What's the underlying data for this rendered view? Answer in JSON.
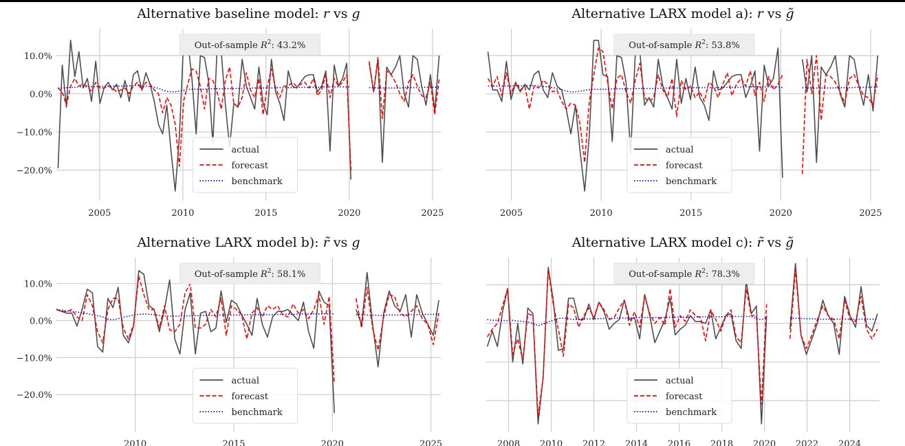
{
  "colors": {
    "actual": "#4d4d4d",
    "forecast": "#ff0000",
    "benchmark": "#0000cc",
    "grid": "#cccccc",
    "annotation_bg": "#eeeeee"
  },
  "legend": {
    "actual": "actual",
    "forecast": "forecast",
    "benchmark": "benchmark"
  },
  "chart_data": [
    {
      "type": "line",
      "title": "Alternative baseline model: r vs g",
      "title_parts": {
        "prefix": "Alternative baseline model: ",
        "left_sym": "r",
        "vs": " vs ",
        "right_sym": "g",
        "left_tilde": false,
        "right_tilde": false
      },
      "annotation": {
        "prefix": "Out-of-sample ",
        "sym": "R",
        "sup": "2",
        "value": ": 43.2%"
      },
      "xlim": [
        2002.4,
        2025.5
      ],
      "ylim": [
        -28,
        17
      ],
      "yticks": [
        10,
        0,
        -10,
        -20
      ],
      "ytick_labels": [
        "10.0%",
        "0.0%",
        "−10.0%",
        "−20.0%"
      ],
      "xticks": [
        2005,
        2010,
        2015,
        2020,
        2025
      ],
      "xtick_labels": [
        "2005",
        "2010",
        "2015",
        "2020",
        "2025"
      ],
      "legend_position": "lower-center",
      "x_start": 2002.5,
      "gap": [
        2020.1,
        2021.2
      ],
      "actual": [
        -19.5,
        7.5,
        -3.5,
        14,
        4.5,
        11,
        1.5,
        4,
        -2,
        8.5,
        -2.5,
        1.5,
        3,
        1,
        2.5,
        -1,
        3.5,
        -2,
        5,
        6,
        1,
        5.5,
        2.5,
        -2,
        -8,
        -10.5,
        -3,
        -15,
        -25.5,
        -11,
        14,
        14,
        4,
        -10.5,
        10,
        9.5,
        3,
        -13,
        11.5,
        11,
        -3,
        -14,
        -2.5,
        -3.5,
        9,
        2,
        -1,
        -4,
        7,
        -2.5,
        -5.5,
        9,
        0.5,
        -2.5,
        -7,
        6,
        2,
        1.5,
        3,
        4.5,
        5,
        5,
        0.5,
        2,
        6,
        -15,
        7.5,
        2,
        4,
        8,
        -22.5,
        8,
        0.5,
        9,
        -18,
        7,
        5,
        7,
        10,
        0,
        -3.5,
        10,
        9,
        2,
        -3,
        5,
        -4.5,
        10
      ],
      "forecast": [
        1.5,
        0.5,
        -3,
        2,
        4,
        2,
        2.5,
        2,
        0.5,
        3,
        1.5,
        1.5,
        2,
        1.5,
        0.5,
        1,
        1.5,
        0,
        2,
        3,
        1,
        3,
        2.5,
        1,
        0,
        -5,
        -1,
        -3,
        -8,
        -19,
        -2,
        2.5,
        6.5,
        6,
        2,
        -4,
        4,
        3.5,
        0.5,
        -4,
        3.5,
        7,
        -2.5,
        -3.5,
        -1,
        5.5,
        1,
        -1,
        4,
        -5.5,
        2,
        6.5,
        1.5,
        -1,
        2,
        2,
        3,
        2,
        2.5,
        3,
        1.5,
        4,
        -0.5,
        1,
        5,
        -1,
        4,
        2,
        3,
        5,
        -20,
        8.5,
        0.5,
        9.5,
        -6.5,
        6,
        5,
        3,
        0,
        -2,
        3,
        5,
        2,
        -0.5,
        -1,
        3,
        -5.5,
        4
      ],
      "benchmark": [
        1.5,
        1.5,
        1.6,
        1.6,
        1.7,
        1.8,
        1.8,
        1.8,
        1.9,
        1.9,
        1.9,
        2,
        2,
        2,
        2,
        2,
        2,
        2.1,
        2.1,
        2.2,
        2.1,
        2,
        1.9,
        1.7,
        1.4,
        1,
        0.6,
        0.5,
        0.5,
        0.7,
        0.9,
        1.1,
        1.2,
        1.2,
        1.2,
        1.2,
        1.3,
        1.3,
        1.3,
        1.3,
        1.3,
        1.4,
        1.4,
        1.4,
        1.4,
        1.4,
        1.5,
        1.5,
        1.5,
        1.5,
        1.5,
        1.5,
        1.6,
        1.6,
        1.6,
        1.6,
        1.6,
        1.6,
        1.7,
        1.7,
        1.7,
        1.7,
        1.7,
        1.8,
        1.8,
        1.8,
        1.8,
        1.8,
        1.8,
        1.8,
        1.8,
        1.6,
        1.6,
        1.5,
        1.5,
        1.5,
        1.5,
        1.5,
        1.5,
        1.6,
        1.6,
        1.6,
        1.6,
        1.7,
        1.7,
        1.7,
        1.7,
        1.8
      ]
    },
    {
      "type": "line",
      "title": "Alternative LARX model a): r vs g̃",
      "title_parts": {
        "prefix": "Alternative LARX model a): ",
        "left_sym": "r",
        "vs": " vs ",
        "right_sym": "g",
        "left_tilde": false,
        "right_tilde": true
      },
      "annotation": {
        "prefix": "Out-of-sample ",
        "sym": "R",
        "sup": "2",
        "value": ": 53.8%"
      },
      "xlim": [
        2003.6,
        2025.5
      ],
      "ylim": [
        -28,
        17
      ],
      "yticks": [
        10,
        0,
        -10,
        -20
      ],
      "ytick_labels": [],
      "xticks": [
        2005,
        2010,
        2015,
        2020,
        2025
      ],
      "xtick_labels": [
        "2005",
        "2010",
        "2015",
        "2020",
        "2025"
      ],
      "legend_position": "lower-center",
      "x_start": 2003.7,
      "gap": [
        2020.1,
        2021.2
      ],
      "actual": [
        11,
        1,
        1,
        -2,
        8.5,
        -1.5,
        3,
        0.5,
        2.5,
        1,
        5,
        6,
        1,
        -1,
        5.5,
        2,
        1,
        -4,
        -10.5,
        -3,
        -15,
        -25.5,
        -11,
        14,
        14,
        5,
        4.5,
        -12.5,
        10,
        9.5,
        3,
        -15.5,
        10.5,
        11,
        -3,
        -1,
        -3.5,
        9,
        2,
        -1,
        -4,
        9,
        -2.5,
        4,
        -1.5,
        7,
        -1,
        -3,
        -7,
        6,
        1,
        1.5,
        3,
        4.5,
        5,
        5,
        -1,
        2,
        6,
        -15,
        7.5,
        2,
        4,
        12,
        -22,
        9,
        0.5,
        10,
        -18,
        7,
        5,
        7,
        10,
        0,
        -3.5,
        10,
        9,
        2,
        -3,
        5,
        -4.5,
        10
      ],
      "forecast": [
        4,
        2,
        4.5,
        -0.5,
        5.5,
        0,
        3,
        1,
        2,
        -4,
        2,
        1.5,
        3.5,
        2.5,
        0.5,
        1,
        -2,
        -4,
        -2.5,
        -3,
        -8,
        -18,
        -2,
        5,
        12,
        11,
        3,
        -4,
        4,
        5,
        0.5,
        -2.5,
        3.5,
        8,
        -1,
        -2,
        -1,
        5,
        1,
        -1,
        4,
        -6,
        3.5,
        1,
        2,
        -1,
        0.5,
        -2,
        3,
        2,
        -1,
        2.5,
        5.5,
        -0.5,
        2.5,
        4,
        2,
        6,
        -0.5,
        3,
        -2,
        4.5,
        1,
        2.5,
        5,
        -21,
        9,
        0,
        10,
        -7,
        5,
        4.5,
        3,
        0.5,
        -2.5,
        4,
        5,
        2,
        -0.5,
        -1,
        -3,
        5
      ],
      "benchmark": [
        2,
        2,
        2,
        2,
        2,
        2,
        2.1,
        2.1,
        2.1,
        2.2,
        2.1,
        2,
        1.9,
        1.7,
        1.5,
        1.2,
        0.8,
        0.5,
        0.5,
        0.7,
        0.9,
        1.1,
        1.2,
        1.2,
        1.2,
        1.2,
        1.3,
        1.3,
        1.3,
        1.3,
        1.3,
        1.4,
        1.4,
        1.4,
        1.4,
        1.4,
        1.5,
        1.5,
        1.5,
        1.5,
        1.5,
        1.5,
        1.6,
        1.6,
        1.6,
        1.6,
        1.6,
        1.6,
        1.7,
        1.7,
        1.7,
        1.7,
        1.7,
        1.8,
        1.8,
        1.8,
        1.8,
        1.8,
        1.8,
        1.8,
        1.8,
        1.6,
        1.6,
        1.5,
        1.5,
        1.5,
        1.5,
        1.5,
        1.5,
        1.6,
        1.6,
        1.6,
        1.6,
        1.7,
        1.7,
        1.7,
        1.7,
        1.8
      ]
    },
    {
      "type": "line",
      "title": "Alternative LARX model b): r̃ vs g",
      "title_parts": {
        "prefix": "Alternative LARX model b): ",
        "left_sym": "r",
        "vs": " vs ",
        "right_sym": "g",
        "left_tilde": true,
        "right_tilde": false
      },
      "annotation": {
        "prefix": "Out-of-sample ",
        "sym": "R",
        "sup": "2",
        "value": ": 58.1%"
      },
      "xlim": [
        2006.0,
        2025.5
      ],
      "ylim": [
        -30,
        17
      ],
      "yticks": [
        10,
        0,
        -10,
        -20
      ],
      "ytick_labels": [
        "10.0%",
        "0.0%",
        "−10.0%",
        "−20.0%"
      ],
      "xticks": [
        2010,
        2015,
        2020,
        2025
      ],
      "xtick_labels": [
        "2010",
        "2015",
        "2020",
        "2025"
      ],
      "legend_position": "lower-center",
      "x_start": 2006.0,
      "gap": [
        2020.1,
        2021.2
      ],
      "actual": [
        3,
        2.5,
        2,
        2,
        -1.5,
        3,
        8.5,
        7.5,
        -7,
        -8.5,
        6,
        3.5,
        9,
        -4,
        -6,
        -1.5,
        13.5,
        12.5,
        4,
        3,
        -3,
        3,
        11,
        -5,
        -9,
        3,
        7.5,
        -9,
        2,
        2.5,
        -3,
        -2,
        8,
        -0.5,
        5.5,
        4.5,
        1.5,
        -1,
        -4,
        6,
        -1,
        -4.5,
        1,
        2.5,
        2.5,
        3,
        1.5,
        0,
        5,
        -3,
        -7.5,
        8,
        5,
        4,
        -25,
        3,
        -1,
        13,
        -1,
        -12.5,
        2,
        8,
        4,
        2.5,
        7,
        -4.5,
        7,
        2,
        -1,
        -4,
        5.5
      ],
      "forecast": [
        3,
        2.5,
        2.5,
        3,
        1,
        0,
        7,
        4,
        -3,
        -6,
        3,
        6,
        6,
        -2,
        -5,
        -1,
        12,
        7,
        3,
        3,
        -2,
        4,
        -2.5,
        -3,
        -1,
        7.5,
        10,
        -2,
        -2,
        -1,
        3,
        1,
        6,
        -4,
        4,
        3,
        1.5,
        -5,
        2,
        3.5,
        1,
        4,
        3,
        4,
        1.5,
        1,
        4.5,
        2,
        3,
        0.5,
        3,
        7,
        -1,
        6.5,
        -17,
        6,
        -2,
        9,
        -2,
        -8,
        1,
        7,
        6.5,
        2,
        1,
        2.5,
        4,
        0.5,
        -1,
        -6.5,
        2
      ],
      "benchmark": [
        3,
        2.8,
        2.6,
        2.4,
        2.3,
        2.1,
        1.9,
        1.6,
        1.3,
        1,
        0.4,
        0.2,
        0.5,
        0.9,
        1.2,
        1.5,
        1.7,
        1.8,
        1.7,
        1.6,
        1.4,
        1.3,
        1.2,
        1.2,
        1.2,
        1.3,
        1.3,
        1.3,
        1.4,
        1.4,
        1.4,
        1.4,
        1.5,
        1.5,
        1.5,
        1.5,
        1.5,
        1.6,
        1.6,
        1.6,
        1.6,
        1.6,
        1.6,
        1.7,
        1.7,
        1.7,
        1.7,
        1.7,
        1.8,
        1.8,
        1.8,
        1.8,
        1.8,
        1.8,
        1.8,
        1.6,
        1.6,
        1.5,
        1.5,
        1.4,
        1.4,
        1.5,
        1.5,
        1.5,
        1.6,
        1.6,
        1.6,
        1.7,
        1.7,
        1.7,
        1.8
      ]
    },
    {
      "type": "line",
      "title": "Alternative LARX model c): r̃ vs g̃",
      "title_parts": {
        "prefix": "Alternative LARX model c): ",
        "left_sym": "r",
        "vs": " vs ",
        "right_sym": "g",
        "left_tilde": true,
        "right_tilde": true
      },
      "annotation": {
        "prefix": "Out-of-sample ",
        "sym": "R",
        "sup": "2",
        "value": ": 78.3%"
      },
      "xlim": [
        2006.95,
        2025.4
      ],
      "ylim": [
        -28,
        17
      ],
      "yticks": [
        10,
        0,
        -10,
        -20
      ],
      "ytick_labels": [],
      "xticks": [
        2008,
        2010,
        2012,
        2014,
        2016,
        2018,
        2020,
        2022,
        2024
      ],
      "xtick_labels": [
        "2008",
        "2010",
        "2012",
        "2014",
        "2016",
        "2018",
        "2020",
        "2022",
        "2024"
      ],
      "legend_position": "lower-center",
      "x_start": 2007.0,
      "gap": [
        2020.1,
        2021.2
      ],
      "actual": [
        -6,
        -2,
        -6,
        3,
        9,
        -10,
        0,
        -10.5,
        4,
        2.5,
        -26,
        -14,
        14.5,
        6,
        -7,
        -6.5,
        6.5,
        6.5,
        1,
        1,
        5,
        1,
        5.5,
        3,
        -1.5,
        0,
        1,
        6,
        1,
        1.5,
        -4,
        7.5,
        2,
        -5,
        -2,
        1,
        6.5,
        -3,
        -1.5,
        -0.5,
        2,
        0.5,
        0.5,
        0,
        3.5,
        -4,
        -1,
        2,
        2.5,
        -4.5,
        -6.5,
        11,
        2.5,
        4.5,
        -26,
        2,
        -1.5,
        15.5,
        -3,
        -8,
        -4,
        0,
        6,
        2,
        0,
        -8,
        7,
        2,
        -1,
        9.5,
        -0.5,
        -2,
        2.5
      ],
      "forecast": [
        -3.5,
        -1.5,
        0,
        4.5,
        9,
        -8,
        -4,
        -9.5,
        2.5,
        2,
        -24,
        -14,
        14,
        5,
        -1.5,
        -8.5,
        5,
        4,
        -1,
        2,
        4,
        1.5,
        5.5,
        3.5,
        1,
        1.5,
        4,
        6,
        -0.5,
        3,
        -1,
        7,
        2.5,
        0,
        1.5,
        -0.5,
        9,
        -1,
        2,
        0.5,
        3.5,
        2,
        1.5,
        -4.5,
        3.5,
        1,
        -2,
        2,
        3.5,
        -3.5,
        -5,
        9,
        2,
        2,
        -21,
        5,
        -4,
        14,
        -3,
        -6.5,
        -3,
        1,
        4.5,
        2,
        1,
        -4,
        6,
        1,
        0.5,
        7,
        -1.5,
        -4,
        -1.5
      ],
      "benchmark": [
        1,
        0.8,
        0.8,
        0.7,
        0.7,
        0.8,
        0.6,
        0.5,
        0.4,
        0,
        -0.6,
        -0.2,
        0.4,
        0.8,
        1.3,
        1.4,
        1.2,
        1,
        1,
        1.1,
        1.2,
        1.2,
        1.2,
        1.3,
        1.3,
        1.3,
        1.4,
        1.4,
        1.4,
        1.4,
        1.5,
        1.5,
        1.5,
        1.5,
        1.5,
        1.5,
        1.6,
        1.6,
        1.6,
        1.6,
        1.6,
        1.6,
        1.7,
        1.7,
        1.7,
        1.7,
        1.7,
        1.8,
        1.8,
        1.8,
        1.8,
        1.8,
        1.8,
        1.2,
        1,
        1.5,
        1.4,
        1.3,
        1.3,
        1.2,
        1.2,
        1.1,
        1.1,
        1.1,
        1.1,
        1.1,
        1.1,
        1.1,
        1.1,
        1.1,
        1.1,
        1.1,
        1.1
      ]
    }
  ]
}
